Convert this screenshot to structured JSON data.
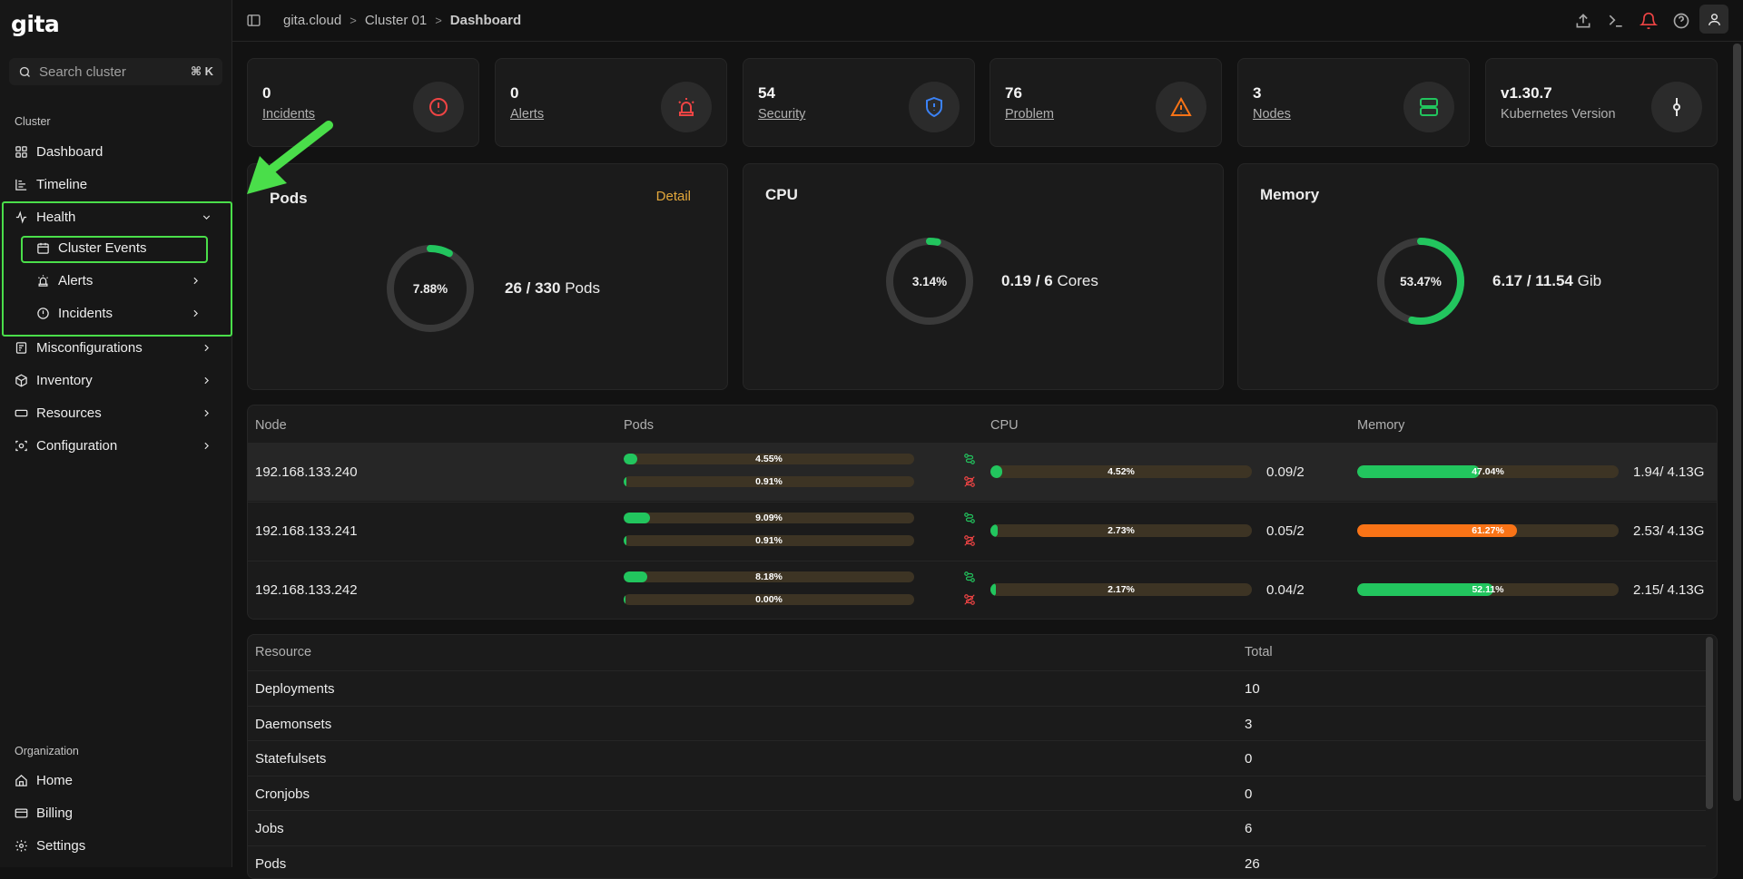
{
  "app": {
    "logo": "gita"
  },
  "search": {
    "placeholder": "Search cluster",
    "shortcut": "⌘ K"
  },
  "sidebar": {
    "cluster_label": "Cluster",
    "org_label": "Organization",
    "items": {
      "dashboard": "Dashboard",
      "timeline": "Timeline",
      "health": "Health",
      "cluster_events": "Cluster Events",
      "alerts": "Alerts",
      "incidents": "Incidents",
      "misconfigurations": "Misconfigurations",
      "inventory": "Inventory",
      "resources": "Resources",
      "configuration": "Configuration",
      "home": "Home",
      "billing": "Billing",
      "settings": "Settings"
    }
  },
  "breadcrumb": {
    "root": "gita.cloud",
    "cluster": "Cluster 01",
    "current": "Dashboard",
    "separator": ">"
  },
  "stats": [
    {
      "value": "0",
      "label": "Incidents",
      "icon": "alert-circle-icon",
      "color": "#ef4444"
    },
    {
      "value": "0",
      "label": "Alerts",
      "icon": "siren-icon",
      "color": "#ef4444"
    },
    {
      "value": "54",
      "label": "Security",
      "icon": "shield-icon",
      "color": "#3b82f6"
    },
    {
      "value": "76",
      "label": "Problem",
      "icon": "warning-triangle-icon",
      "color": "#f97316"
    },
    {
      "value": "3",
      "label": "Nodes",
      "icon": "server-icon",
      "color": "#22c55e"
    },
    {
      "value": "v1.30.7",
      "label": "Kubernetes Version",
      "icon": "git-commit-icon",
      "color": "#e5e5e5"
    }
  ],
  "pods_panel": {
    "title": "Pods",
    "detail": "Detail",
    "percent": 7.88,
    "percent_label": "7.88%",
    "used": "26",
    "total": "330",
    "unit": "Pods"
  },
  "cpu_panel": {
    "title": "CPU",
    "percent": 3.14,
    "percent_label": "3.14%",
    "used": "0.19",
    "total": "6",
    "unit": "Cores"
  },
  "memory_panel": {
    "title": "Memory",
    "percent": 53.47,
    "percent_label": "53.47%",
    "used": "6.17",
    "total": "11.54",
    "unit": "Gib"
  },
  "nodes_table": {
    "headers": {
      "node": "Node",
      "pods": "Pods",
      "cpu": "CPU",
      "memory": "Memory"
    },
    "rows": [
      {
        "ip": "192.168.133.240",
        "pods_ok": "4.55%",
        "pods_ok_v": 4.55,
        "pods_bad": "0.91%",
        "pods_bad_v": 0.91,
        "cpu": "4.52%",
        "cpu_v": 4.52,
        "cpu_val": "0.09/2",
        "mem": "47.04%",
        "mem_v": 47.04,
        "mem_val": "1.94/ 4.13G",
        "mem_color": "#22c55e"
      },
      {
        "ip": "192.168.133.241",
        "pods_ok": "9.09%",
        "pods_ok_v": 9.09,
        "pods_bad": "0.91%",
        "pods_bad_v": 0.91,
        "cpu": "2.73%",
        "cpu_v": 2.73,
        "cpu_val": "0.05/2",
        "mem": "61.27%",
        "mem_v": 61.27,
        "mem_val": "2.53/ 4.13G",
        "mem_color": "#f97316"
      },
      {
        "ip": "192.168.133.242",
        "pods_ok": "8.18%",
        "pods_ok_v": 8.18,
        "pods_bad": "0.00%",
        "pods_bad_v": 0,
        "cpu": "2.17%",
        "cpu_v": 2.17,
        "cpu_val": "0.04/2",
        "mem": "52.11%",
        "mem_v": 52.11,
        "mem_val": "2.15/ 4.13G",
        "mem_color": "#22c55e"
      }
    ]
  },
  "resources_table": {
    "headers": {
      "resource": "Resource",
      "total": "Total"
    },
    "rows": [
      {
        "name": "Deployments",
        "total": "10"
      },
      {
        "name": "Daemonsets",
        "total": "3"
      },
      {
        "name": "Statefulsets",
        "total": "0"
      },
      {
        "name": "Cronjobs",
        "total": "0"
      },
      {
        "name": "Jobs",
        "total": "6"
      },
      {
        "name": "Pods",
        "total": "26"
      }
    ]
  },
  "colors": {
    "accent_green": "#22c55e",
    "highlight": "#4ade4a",
    "detail": "#e2a73b"
  }
}
